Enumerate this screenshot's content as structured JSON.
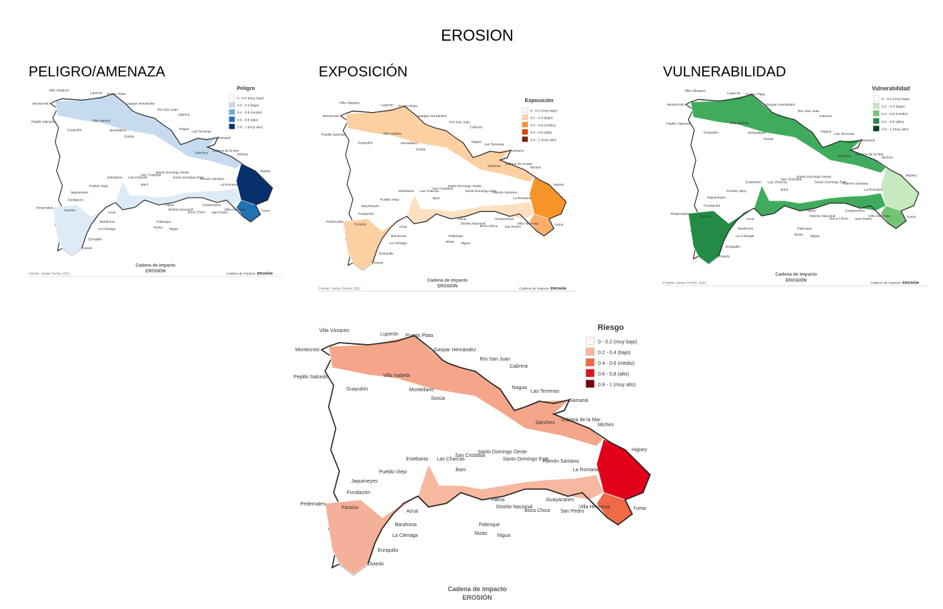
{
  "title": "EROSION",
  "legend_labels": [
    "0 - 0.2 (muy bajo)",
    "0.2 - 0.4 (bajo)",
    "0.4 - 0.6 (medio)",
    "0.6 - 0.8 (alto)",
    "0.8 - 1 (muy alto)"
  ],
  "place_names": [
    "Villa Vásquez",
    "Montecristi",
    "Pepillo Salcedo",
    "Guayubín",
    "Luperón",
    "Puerto Plata",
    "Villa Isabela",
    "Gaspar Hernández",
    "Montellano",
    "Sosúa",
    "Río San Juan",
    "Cabrera",
    "Nagua",
    "Las Terrenas",
    "Samaná",
    "Sánchez",
    "Sabana de la Mar",
    "Miches",
    "Higüey",
    "Yuma",
    "Ramón Santana",
    "La Romana",
    "Guayacanes",
    "San Pedro",
    "Villa Hermosa",
    "Boca Chica",
    "Distrito Nacional",
    "Haina",
    "Palenque",
    "Nigua",
    "Nizao",
    "Santo Domingo Este",
    "Santo Domingo Oeste",
    "San Cristóbal",
    "Baní",
    "Las Charcas",
    "Estebanio",
    "Pueblo Viejo",
    "Jaquimeyes",
    "Fundación",
    "Azua",
    "Pedernales",
    "Paraíso",
    "Barahona",
    "La Ciénaga",
    "Enriquillo",
    "Oviedo"
  ],
  "footer": {
    "line1": "Cadena de impacto",
    "line2": "EROSIÓN",
    "source": "Fuente: Varias Fecha: 2021"
  },
  "maps": [
    {
      "heading": "PELIGRO/AMENAZA",
      "legend_title": "Peligro",
      "legend_colors": [
        "#f7fbff",
        "#c6dbef",
        "#6baed6",
        "#2171b5",
        "#08306b"
      ],
      "region_colors": [
        "#c6dbef",
        "#08306b",
        "#2171b5",
        "#deebf7",
        "#deebf7"
      ]
    },
    {
      "heading": "EXPOSICIÓN",
      "legend_title": "Exposición",
      "legend_colors": [
        "#fff5eb",
        "#fdd0a2",
        "#f7952a",
        "#d94801",
        "#7f2704"
      ],
      "region_colors": [
        "#fdd0a2",
        "#f7952a",
        "#fdae6b",
        "#fde0c0",
        "#fdd0a2"
      ]
    },
    {
      "heading": "VULNERABILIDAD",
      "legend_title": "Vulnerabilidad",
      "legend_colors": [
        "#f7fcf5",
        "#c7e9c0",
        "#74c476",
        "#238b45",
        "#00441b"
      ],
      "region_colors": [
        "#41ab5d",
        "#c7e9c0",
        "#74c476",
        "#41ab5d",
        "#238b45"
      ]
    },
    {
      "legend_title": "Riesgo",
      "legend_colors": [
        "#fff5f0",
        "#f7b8a0",
        "#ef6a45",
        "#d7191c",
        "#7a0010"
      ],
      "region_colors": [
        "#f4a58a",
        "#e3001b",
        "#ef6a45",
        "#f7b8a0",
        "#f5b09a"
      ]
    }
  ]
}
